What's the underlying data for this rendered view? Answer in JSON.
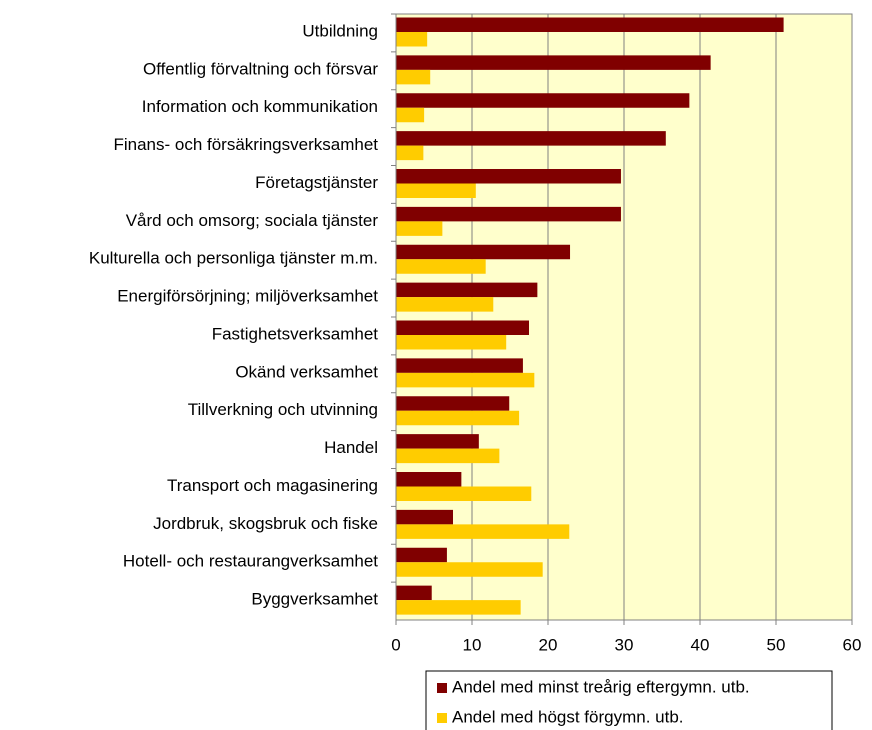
{
  "chart_data": {
    "type": "bar",
    "orientation": "horizontal",
    "categories": [
      "Utbildning",
      "Offentlig förvaltning och försvar",
      "Information och kommunikation",
      "Finans- och försäkringsverksamhet",
      "Företagstjänster",
      "Vård och omsorg; sociala tjänster",
      "Kulturella och personliga tjänster m.m.",
      "Energiförsörjning; miljöverksamhet",
      "Fastighetsverksamhet",
      "Okänd verksamhet",
      "Tillverkning och utvinning",
      "Handel",
      "Transport och magasinering",
      "Jordbruk, skogsbruk och fiske",
      "Hotell- och restaurangverksamhet",
      "Byggverksamhet"
    ],
    "series": [
      {
        "name": "Andel med minst treårig eftergymn. utb.",
        "color": "#800000",
        "values": [
          51,
          41.4,
          38.6,
          35.5,
          29.6,
          29.6,
          22.9,
          18.6,
          17.5,
          16.7,
          14.9,
          10.9,
          8.6,
          7.5,
          6.7,
          4.7
        ]
      },
      {
        "name": "Andel med högst förgymn. utb.",
        "color": "#ffcc00",
        "values": [
          4.1,
          4.5,
          3.7,
          3.6,
          10.5,
          6.1,
          11.8,
          12.8,
          14.5,
          18.2,
          16.2,
          13.6,
          17.8,
          22.8,
          19.3,
          16.4
        ]
      }
    ],
    "xlim": [
      0,
      60
    ],
    "xticks": [
      0,
      10,
      20,
      30,
      40,
      50,
      60
    ],
    "grid": true,
    "plot_background": "#ffffcc",
    "legend": "bottom"
  }
}
